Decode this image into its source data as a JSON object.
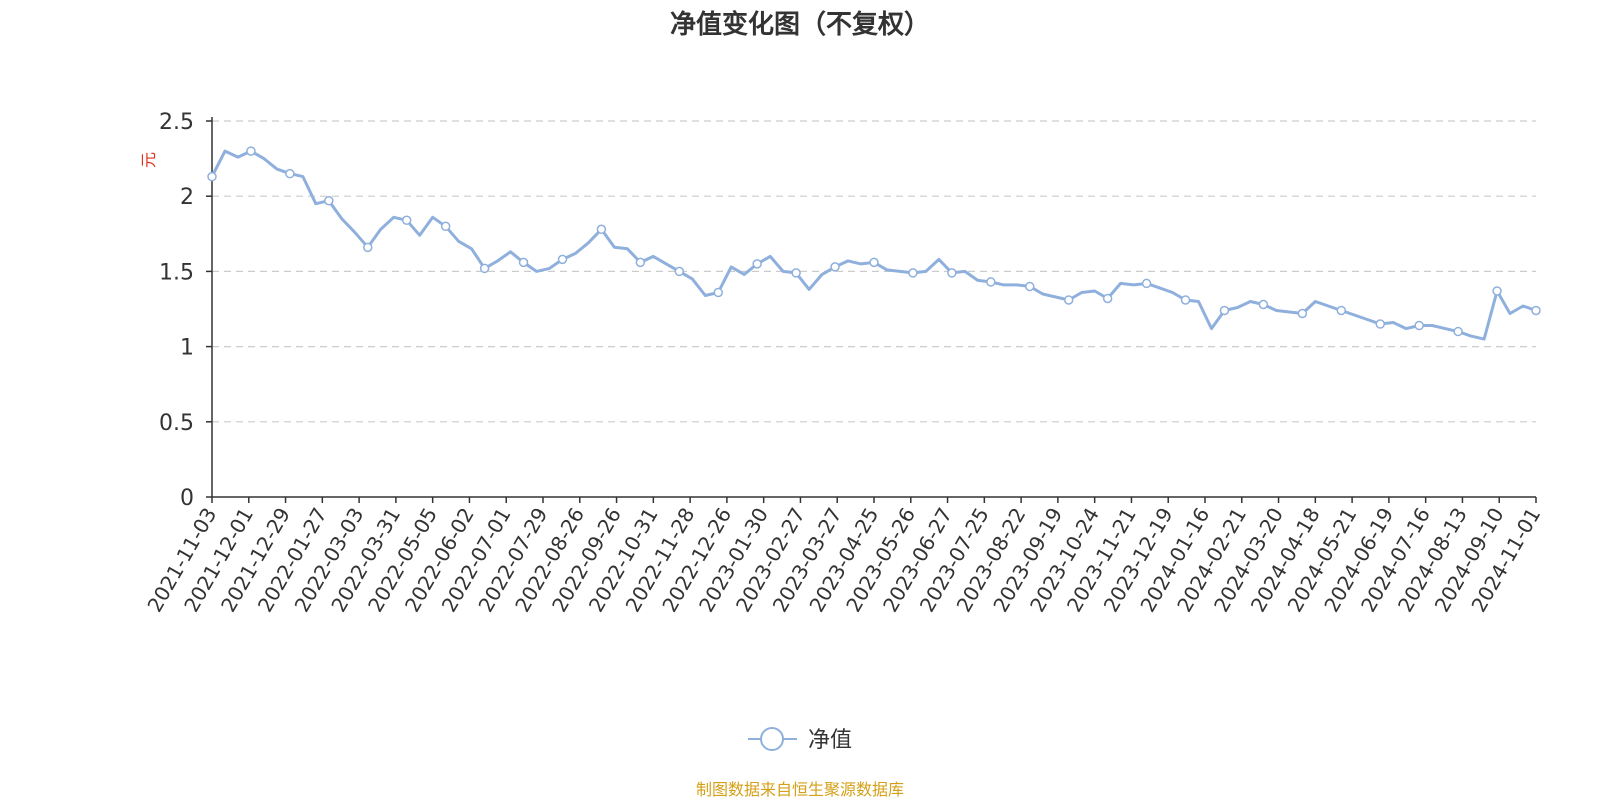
{
  "chart_data": {
    "type": "line",
    "title": "净值变化图（不复权）",
    "ylabel": "元",
    "xlabel": "",
    "ylim": [
      0,
      2.5
    ],
    "yticks": [
      "0",
      "0.5",
      "1",
      "1.5",
      "2",
      "2.5"
    ],
    "grid": true,
    "legend_position": "bottom-center",
    "source": "制图数据来自恒生聚源数据库",
    "x_tick_labels": [
      "2021-11-03",
      "2021-12-01",
      "2021-12-29",
      "2022-01-27",
      "2022-03-03",
      "2022-03-31",
      "2022-05-05",
      "2022-06-02",
      "2022-07-01",
      "2022-07-29",
      "2022-08-26",
      "2022-09-26",
      "2022-10-31",
      "2022-11-28",
      "2022-12-26",
      "2023-01-30",
      "2023-02-27",
      "2023-03-27",
      "2023-04-25",
      "2023-05-26",
      "2023-06-27",
      "2023-07-25",
      "2023-08-22",
      "2023-09-19",
      "2023-10-24",
      "2023-11-21",
      "2023-12-19",
      "2024-01-16",
      "2024-02-21",
      "2024-03-20",
      "2024-04-18",
      "2024-05-21",
      "2024-06-19",
      "2024-07-16",
      "2024-08-13",
      "2024-09-10",
      "2024-11-01"
    ],
    "series": [
      {
        "name": "净值",
        "color": "#8fb0dd",
        "values": [
          2.13,
          2.3,
          2.26,
          2.3,
          2.25,
          2.18,
          2.15,
          2.13,
          1.95,
          1.97,
          1.85,
          1.76,
          1.66,
          1.78,
          1.86,
          1.84,
          1.74,
          1.86,
          1.8,
          1.7,
          1.65,
          1.52,
          1.57,
          1.63,
          1.56,
          1.5,
          1.52,
          1.58,
          1.62,
          1.69,
          1.78,
          1.66,
          1.65,
          1.56,
          1.6,
          1.55,
          1.5,
          1.45,
          1.34,
          1.36,
          1.53,
          1.48,
          1.55,
          1.6,
          1.5,
          1.49,
          1.38,
          1.48,
          1.53,
          1.57,
          1.55,
          1.56,
          1.51,
          1.5,
          1.49,
          1.5,
          1.58,
          1.49,
          1.5,
          1.44,
          1.43,
          1.41,
          1.41,
          1.4,
          1.35,
          1.33,
          1.31,
          1.36,
          1.37,
          1.32,
          1.42,
          1.41,
          1.42,
          1.39,
          1.36,
          1.31,
          1.3,
          1.12,
          1.24,
          1.26,
          1.3,
          1.28,
          1.24,
          1.23,
          1.22,
          1.3,
          1.27,
          1.24,
          1.21,
          1.18,
          1.15,
          1.16,
          1.12,
          1.14,
          1.14,
          1.12,
          1.1,
          1.07,
          1.05,
          1.37,
          1.22,
          1.27,
          1.24
        ]
      }
    ]
  }
}
